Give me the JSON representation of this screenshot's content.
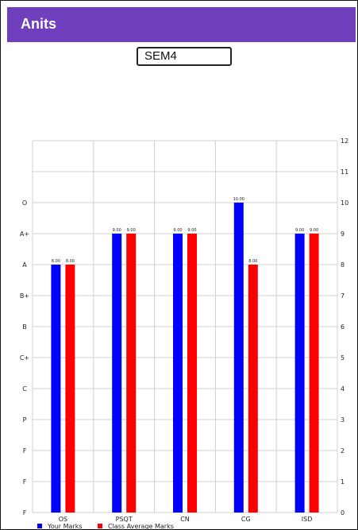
{
  "app": {
    "title": "Anits"
  },
  "semester_select": {
    "value": "SEM4"
  },
  "colors": {
    "app_bar": "#6f3fbd",
    "your_marks": "#0000ff",
    "class_average": "#ff0000",
    "grid": "#d0d0d0"
  },
  "chart_data": {
    "type": "bar",
    "categories": [
      "OS",
      "PSQT",
      "CN",
      "CG",
      "ISD"
    ],
    "series": [
      {
        "name": "Your Marks",
        "color": "#0000ff",
        "values": [
          8.0,
          9.0,
          9.0,
          10.0,
          9.0
        ],
        "labels": [
          "8.00",
          "9.00",
          "9.00",
          "10.00",
          "9.00"
        ]
      },
      {
        "name": "Class Average Marks",
        "color": "#ff0000",
        "values": [
          8.0,
          9.0,
          9.0,
          8.0,
          9.0
        ],
        "labels": [
          "8.00",
          "9.00",
          "9.00",
          "8.00",
          "9.00"
        ]
      }
    ],
    "ylim": [
      0,
      12
    ],
    "right_ticks": [
      "0",
      "1",
      "2",
      "3",
      "4",
      "5",
      "6",
      "7",
      "8",
      "9",
      "10",
      "11",
      "12"
    ],
    "left_ticks": [
      {
        "value": 0,
        "label": "F"
      },
      {
        "value": 1,
        "label": "F"
      },
      {
        "value": 2,
        "label": "F"
      },
      {
        "value": 3,
        "label": "P"
      },
      {
        "value": 4,
        "label": "C"
      },
      {
        "value": 5,
        "label": "C+"
      },
      {
        "value": 6,
        "label": "B"
      },
      {
        "value": 7,
        "label": "B+"
      },
      {
        "value": 8,
        "label": "A"
      },
      {
        "value": 9,
        "label": "A+"
      },
      {
        "value": 10,
        "label": "O"
      }
    ],
    "grid": true,
    "legend_position": "bottom-left"
  }
}
